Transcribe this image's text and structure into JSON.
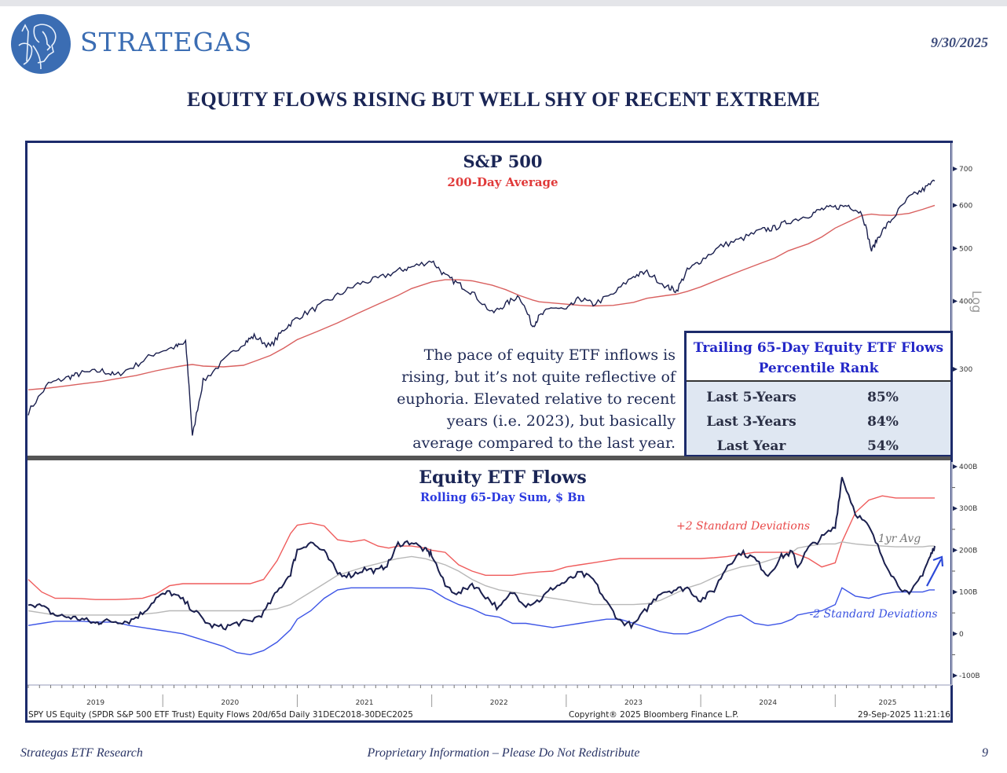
{
  "header": {
    "brand": "STRATEGAS",
    "date": "9/30/2025",
    "headline": "EQUITY FLOWS RISING BUT WELL SHY OF RECENT EXTREME",
    "logo_icon": "spartan-warrior-logo-icon"
  },
  "annotation": {
    "line1": "The pace of equity ETF inflows is",
    "line2": "rising, but it’s not quite reflective of",
    "line3": "euphoria. Elevated relative to recent",
    "line4": "years (i.e. 2023), but basically",
    "line5": "average compared to the last year."
  },
  "rank_table": {
    "title_line1": "Trailing 65-Day Equity ETF Flows",
    "title_line2": "Percentile Rank",
    "rows": [
      {
        "label": "Last 5-Years",
        "value": "85%"
      },
      {
        "label": "Last 3-Years",
        "value": "84%"
      },
      {
        "label": "Last Year",
        "value": "54%"
      }
    ]
  },
  "source": {
    "left": "SPY US Equity (SPDR S&P 500 ETF Trust) Equity Flows 20d/65d  Daily 31DEC2018-30DEC2025",
    "center": "Copyright® 2025 Bloomberg Finance L.P.",
    "right": "29-Sep-2025 11:21:16"
  },
  "footer": {
    "left": "Strategas ETF Research",
    "center": "Proprietary Information – Please Do Not Redistribute",
    "page": "9"
  },
  "colors": {
    "price": "#1a1f4e",
    "ma200": "#d9605f",
    "upper_band": "#ef5b5b",
    "lower_band": "#3d55e6",
    "avg": "#b8b8b8",
    "frame": "#1c2b6b",
    "arrow": "#2c49d8"
  },
  "chart_data": [
    {
      "type": "line",
      "title": "S&P 500",
      "subtitle": "200-Day Average",
      "yscale": "log",
      "ylabel": "Log",
      "ylim": [
        250,
        720
      ],
      "yticks": [
        "700",
        "600",
        "500",
        "400",
        "300"
      ],
      "x_ticks": [
        "2019",
        "2020",
        "2021",
        "2022",
        "2023",
        "2024",
        "2025"
      ],
      "x": [
        2019.0,
        2019.15,
        2019.3,
        2019.4,
        2019.55,
        2019.65,
        2019.8,
        2019.95,
        2020.1,
        2020.17,
        2020.22,
        2020.3,
        2020.45,
        2020.6,
        2020.68,
        2020.8,
        2020.9,
        2021.0,
        2021.15,
        2021.3,
        2021.45,
        2021.6,
        2021.75,
        2021.85,
        2022.0,
        2022.1,
        2022.2,
        2022.3,
        2022.45,
        2022.55,
        2022.65,
        2022.75,
        2022.8,
        2022.9,
        2023.0,
        2023.1,
        2023.2,
        2023.35,
        2023.5,
        2023.6,
        2023.75,
        2023.82,
        2023.9,
        2024.0,
        2024.15,
        2024.3,
        2024.45,
        2024.55,
        2024.65,
        2024.8,
        2024.9,
        2025.0,
        2025.1,
        2025.2,
        2025.27,
        2025.33,
        2025.42,
        2025.55,
        2025.65,
        2025.74
      ],
      "series": [
        {
          "name": "S&P 500",
          "values": [
            250,
            282,
            290,
            295,
            298,
            292,
            305,
            322,
            330,
            335,
            225,
            285,
            310,
            335,
            345,
            330,
            355,
            373,
            390,
            410,
            430,
            440,
            455,
            462,
            475,
            445,
            430,
            415,
            380,
            395,
            410,
            360,
            375,
            390,
            385,
            405,
            395,
            412,
            445,
            452,
            425,
            418,
            455,
            475,
            505,
            520,
            540,
            545,
            560,
            575,
            590,
            595,
            600,
            580,
            495,
            530,
            565,
            620,
            640,
            665
          ]
        },
        {
          "name": "200-Day Average",
          "values": [
            275,
            277,
            280,
            282,
            285,
            288,
            292,
            298,
            303,
            305,
            306,
            304,
            303,
            305,
            310,
            318,
            328,
            340,
            352,
            365,
            380,
            395,
            410,
            422,
            434,
            438,
            438,
            436,
            428,
            420,
            410,
            402,
            399,
            397,
            395,
            393,
            392,
            393,
            398,
            405,
            410,
            412,
            417,
            425,
            440,
            455,
            470,
            480,
            495,
            510,
            525,
            545,
            560,
            575,
            578,
            576,
            575,
            580,
            590,
            600
          ]
        }
      ]
    },
    {
      "type": "line",
      "title": "Equity ETF Flows",
      "subtitle": "Rolling 65-Day Sum, $ Bn",
      "ylim": [
        -100,
        400
      ],
      "yticks": [
        "400B",
        "300B",
        "200B",
        "100B",
        "0",
        "-100B"
      ],
      "x_ticks": [
        "2019",
        "2020",
        "2021",
        "2022",
        "2023",
        "2024",
        "2025"
      ],
      "annotations": [
        "+2 Standard Deviations",
        "1yr Avg",
        "-2 Standard Deviations"
      ],
      "x": [
        2019.0,
        2019.1,
        2019.2,
        2019.3,
        2019.4,
        2019.5,
        2019.55,
        2019.65,
        2019.75,
        2019.85,
        2019.95,
        2020.05,
        2020.15,
        2020.25,
        2020.35,
        2020.45,
        2020.55,
        2020.65,
        2020.75,
        2020.85,
        2020.95,
        2021.0,
        2021.1,
        2021.2,
        2021.3,
        2021.4,
        2021.5,
        2021.6,
        2021.68,
        2021.75,
        2021.85,
        2021.95,
        2022.0,
        2022.1,
        2022.2,
        2022.3,
        2022.4,
        2022.5,
        2022.6,
        2022.7,
        2022.8,
        2022.9,
        2023.0,
        2023.1,
        2023.2,
        2023.3,
        2023.4,
        2023.5,
        2023.6,
        2023.7,
        2023.8,
        2023.9,
        2024.0,
        2024.1,
        2024.2,
        2024.3,
        2024.4,
        2024.5,
        2024.6,
        2024.68,
        2024.72,
        2024.8,
        2024.9,
        2025.0,
        2025.05,
        2025.15,
        2025.25,
        2025.35,
        2025.45,
        2025.55,
        2025.65,
        2025.7,
        2025.74
      ],
      "series": [
        {
          "name": "Flows",
          "values": [
            75,
            65,
            45,
            40,
            35,
            25,
            30,
            30,
            30,
            50,
            85,
            100,
            80,
            50,
            20,
            15,
            25,
            30,
            50,
            100,
            145,
            200,
            220,
            195,
            145,
            140,
            155,
            150,
            170,
            215,
            220,
            200,
            190,
            115,
            95,
            120,
            90,
            60,
            100,
            70,
            80,
            110,
            125,
            145,
            130,
            75,
            30,
            20,
            60,
            100,
            105,
            110,
            80,
            105,
            165,
            195,
            180,
            140,
            185,
            195,
            160,
            205,
            230,
            255,
            375,
            290,
            255,
            185,
            125,
            90,
            145,
            180,
            210
          ]
        },
        {
          "name": "+2 Standard Deviations",
          "values": [
            130,
            100,
            85,
            85,
            84,
            82,
            82,
            82,
            83,
            85,
            95,
            115,
            120,
            120,
            120,
            120,
            120,
            120,
            130,
            175,
            240,
            260,
            265,
            258,
            225,
            220,
            225,
            210,
            205,
            210,
            210,
            205,
            200,
            195,
            165,
            150,
            140,
            140,
            140,
            145,
            148,
            150,
            160,
            165,
            170,
            175,
            180,
            180,
            180,
            180,
            180,
            180,
            180,
            182,
            185,
            190,
            195,
            195,
            195,
            195,
            190,
            180,
            160,
            170,
            220,
            290,
            320,
            330,
            325,
            325,
            325,
            325,
            325
          ]
        },
        {
          "name": "1yr Avg",
          "values": [
            55,
            50,
            45,
            45,
            45,
            45,
            45,
            45,
            45,
            47,
            50,
            55,
            55,
            55,
            55,
            55,
            55,
            55,
            56,
            60,
            70,
            80,
            100,
            120,
            140,
            150,
            160,
            168,
            175,
            180,
            185,
            180,
            175,
            165,
            150,
            130,
            115,
            105,
            100,
            95,
            90,
            85,
            80,
            75,
            70,
            70,
            70,
            70,
            72,
            80,
            95,
            110,
            120,
            135,
            150,
            160,
            165,
            175,
            185,
            195,
            205,
            210,
            215,
            215,
            220,
            215,
            212,
            210,
            208,
            208,
            208,
            210,
            210
          ]
        },
        {
          "name": "-2 Standard Deviations",
          "values": [
            20,
            25,
            30,
            30,
            30,
            28,
            28,
            28,
            20,
            15,
            10,
            5,
            0,
            -10,
            -20,
            -30,
            -45,
            -50,
            -40,
            -20,
            10,
            35,
            55,
            85,
            105,
            110,
            110,
            110,
            110,
            110,
            110,
            108,
            105,
            85,
            70,
            60,
            45,
            40,
            25,
            25,
            20,
            15,
            20,
            25,
            30,
            35,
            35,
            25,
            15,
            5,
            0,
            0,
            10,
            25,
            40,
            45,
            25,
            20,
            25,
            35,
            45,
            50,
            55,
            70,
            110,
            90,
            85,
            95,
            100,
            100,
            100,
            105,
            105
          ]
        }
      ]
    }
  ]
}
